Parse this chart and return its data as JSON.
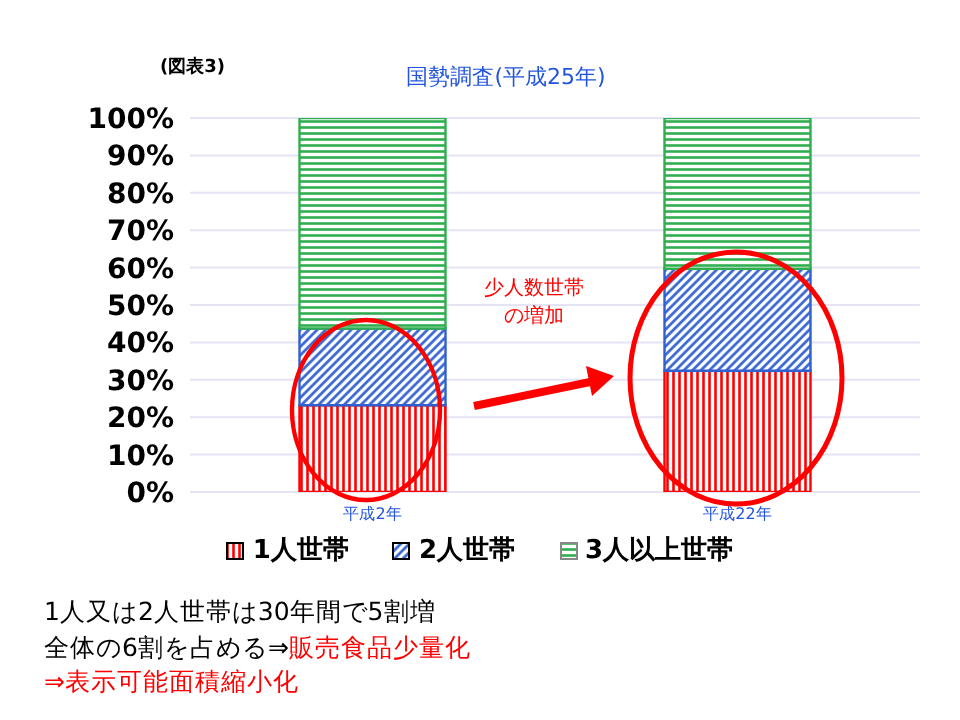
{
  "chart_data": {
    "type": "bar",
    "title": "国勢調査(平成25年)",
    "stacked": true,
    "categories": [
      "平成2年",
      "平成22年"
    ],
    "series": [
      {
        "name": "1人世帯",
        "color": "#ff0000",
        "values": [
          23.2,
          32.4
        ]
      },
      {
        "name": "2人世帯",
        "color": "#2f5fd0",
        "values": [
          20.5,
          27.3
        ]
      },
      {
        "name": "3人以上世帯",
        "color": "#2fae4f",
        "values": [
          56.3,
          40.3
        ]
      }
    ],
    "ylim": [
      0,
      100
    ],
    "yticks": [
      {
        "value": 0,
        "label": "0%"
      },
      {
        "value": 10,
        "label": "10%"
      },
      {
        "value": 20,
        "label": "20%"
      },
      {
        "value": 30,
        "label": "30%"
      },
      {
        "value": 40,
        "label": "40%"
      },
      {
        "value": 50,
        "label": "50%"
      },
      {
        "value": 60,
        "label": "60%"
      },
      {
        "value": 70,
        "label": "70%"
      },
      {
        "value": 80,
        "label": "80%"
      },
      {
        "value": 90,
        "label": "90%"
      },
      {
        "value": 100,
        "label": "100%"
      }
    ],
    "grid": "y",
    "legend": "bottom",
    "annotations": [
      "(図表3)",
      "少人数世帯の増加",
      "1人又は2人世帯は30年間で5割増",
      "全体の6割を占める⇒",
      "販売食品少量化",
      "⇒表示可能面積縮小化"
    ]
  }
}
